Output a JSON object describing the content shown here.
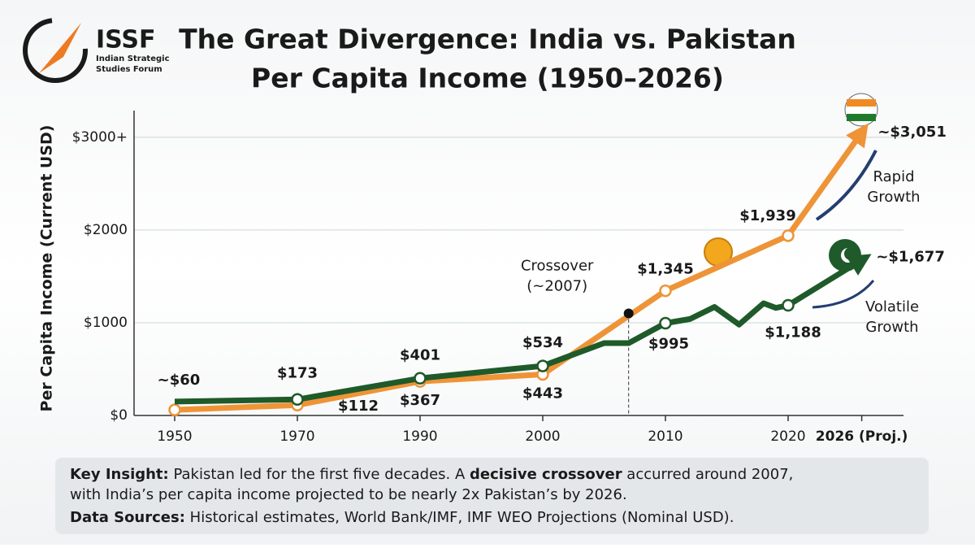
{
  "logo": {
    "name": "ISSF",
    "lines": [
      "Indian Strategic",
      "Studies Forum"
    ]
  },
  "chart_data": {
    "type": "line",
    "title": [
      "The Great Divergence: India vs. Pakistan",
      "Per Capita Income (1950–2026)"
    ],
    "y_label": "Per Capita Income (Current USD)",
    "ylim": [
      0,
      3200
    ],
    "yticks": [
      {
        "value": 0,
        "label": "$0"
      },
      {
        "value": 1000,
        "label": "$1000"
      },
      {
        "value": 2000,
        "label": "$2000"
      },
      {
        "value": 3000,
        "label": "$3000+"
      }
    ],
    "xticks": [
      1950,
      1970,
      1990,
      2000,
      2010,
      2020,
      {
        "value": 2026,
        "label": "2026 (Proj.)"
      }
    ],
    "grid": true,
    "series": [
      {
        "color": "#ee9437",
        "x": [
          1950,
          1970,
          1990,
          2000,
          2010,
          2020,
          2026
        ],
        "values": [
          60,
          112,
          367,
          443,
          1345,
          1939,
          3051
        ],
        "value_labels": [
          "~$60",
          "$112",
          "$367",
          "$443",
          "$1,345",
          "$1,939",
          "~$3,051"
        ]
      },
      {
        "color": "#1f5a2a",
        "x": [
          1950,
          1970,
          1990,
          2000,
          2005,
          2007,
          2010,
          2012,
          2014,
          2016,
          2018,
          2019,
          2020,
          2026
        ],
        "values": [
          150,
          173,
          401,
          534,
          780,
          780,
          995,
          1040,
          1170,
          980,
          1210,
          1160,
          1188,
          1677
        ],
        "value_labels": [
          null,
          "$173",
          "$401",
          "$534",
          null,
          null,
          "$995",
          null,
          null,
          null,
          null,
          null,
          "$1,188",
          "~$1,677"
        ]
      }
    ],
    "crossover": {
      "lines": [
        "Crossover",
        "(~2007)"
      ],
      "x": 2007,
      "y": 1100
    },
    "trend_labels": [
      [
        "Rapid",
        "Growth"
      ],
      [
        "Volatile",
        "Growth"
      ]
    ]
  },
  "insight": {
    "label": "Key Insight:",
    "parts": [
      "Pakistan led for the first five decades. A ",
      "decisive crossover",
      " accurred around 2007,",
      "with India’s per capita income projected to be nearly 2x Pakistan’s by 2026."
    ]
  },
  "sources": {
    "label": "Data Sources:",
    "text": "Historical estimates, World Bank/IMF, IMF WEO Projections (Nominal USD)."
  }
}
